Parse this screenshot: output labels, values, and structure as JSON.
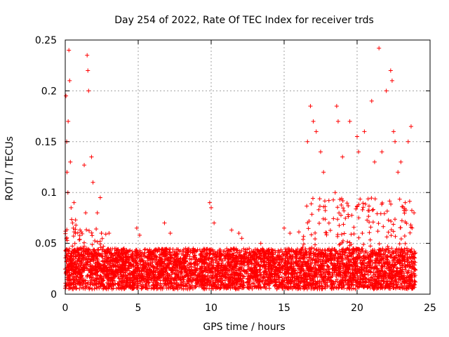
{
  "chart_data": {
    "type": "scatter",
    "title": "Day 254 of 2022, Rate Of TEC Index for receiver trds",
    "xlabel": "GPS time / hours",
    "ylabel": "ROTI / TECUs",
    "xlim": [
      0,
      25
    ],
    "ylim": [
      0,
      0.25
    ],
    "x_ticks": [
      0,
      5,
      10,
      15,
      20,
      25
    ],
    "x_tick_labels": [
      "0",
      "5",
      "10",
      "15",
      "20",
      "25"
    ],
    "y_ticks": [
      0,
      0.05,
      0.1,
      0.15,
      0.2,
      0.25
    ],
    "y_tick_labels": [
      "0",
      "0.05",
      "0.1",
      "0.15",
      "0.2",
      "0.25"
    ],
    "grid": true,
    "marker": "+",
    "marker_color": "#ff0000",
    "series": [
      {
        "name": "ROTI",
        "x": [
          0.05,
          0.1,
          0.2,
          0.25,
          0.3,
          0.12,
          0.18,
          0.35,
          0.4,
          0.5,
          0.55,
          0.6,
          0.7,
          1.4,
          1.5,
          1.55,
          1.6,
          1.3,
          1.8,
          1.9,
          2.2,
          2.4,
          3.0,
          4.9,
          5.1,
          6.8,
          7.2,
          9.9,
          10.0,
          10.2,
          11.4,
          11.9,
          12.1,
          13.4,
          15.0,
          15.4,
          16.6,
          16.8,
          17.0,
          17.2,
          17.5,
          17.7,
          18.6,
          18.7,
          18.5,
          19.0,
          19.5,
          20.0,
          20.1,
          20.5,
          21.0,
          21.2,
          21.5,
          21.7,
          22.0,
          22.3,
          22.4,
          22.5,
          22.6,
          22.8,
          23.0,
          23.3,
          23.5,
          23.7,
          23.9
        ],
        "y": [
          0.195,
          0.15,
          0.17,
          0.24,
          0.21,
          0.12,
          0.1,
          0.13,
          0.085,
          0.07,
          0.065,
          0.09,
          0.06,
          0.08,
          0.235,
          0.22,
          0.2,
          0.127,
          0.135,
          0.11,
          0.08,
          0.095,
          0.06,
          0.065,
          0.058,
          0.07,
          0.06,
          0.09,
          0.085,
          0.07,
          0.063,
          0.06,
          0.055,
          0.05,
          0.065,
          0.06,
          0.15,
          0.185,
          0.17,
          0.16,
          0.14,
          0.12,
          0.185,
          0.17,
          0.1,
          0.135,
          0.17,
          0.155,
          0.14,
          0.16,
          0.19,
          0.13,
          0.242,
          0.14,
          0.2,
          0.22,
          0.21,
          0.16,
          0.15,
          0.12,
          0.13,
          0.09,
          0.15,
          0.165,
          0.08
        ]
      }
    ],
    "dense_band": {
      "description_range_x": [
        0,
        24
      ],
      "baseline_low": 0.005,
      "baseline_high": 0.045
    }
  }
}
